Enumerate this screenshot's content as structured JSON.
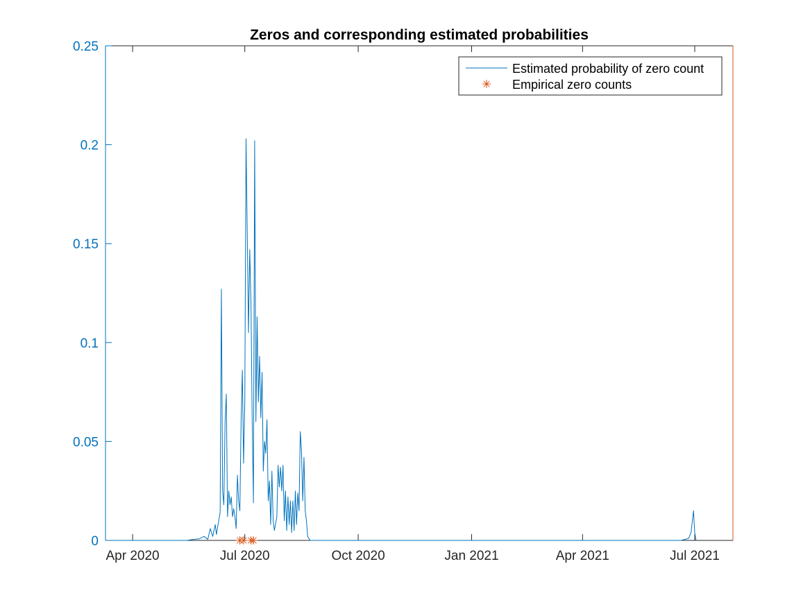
{
  "chart_data": {
    "type": "line",
    "title": "Zeros and corresponding estimated probabilities",
    "xlabel": "",
    "ylabel": "",
    "x_axis": {
      "type": "date",
      "range": [
        "2020-03-10",
        "2021-08-01"
      ],
      "ticks": [
        {
          "date": "2020-04-01",
          "label": "Apr 2020"
        },
        {
          "date": "2020-07-01",
          "label": "Jul 2020"
        },
        {
          "date": "2020-10-01",
          "label": "Oct 2020"
        },
        {
          "date": "2021-01-01",
          "label": "Jan 2021"
        },
        {
          "date": "2021-04-01",
          "label": "Apr 2021"
        },
        {
          "date": "2021-07-01",
          "label": "Jul 2021"
        }
      ]
    },
    "y_axis": {
      "ylim": [
        0,
        0.25
      ],
      "ticks": [
        {
          "value": 0,
          "label": "0"
        },
        {
          "value": 0.05,
          "label": "0.05"
        },
        {
          "value": 0.1,
          "label": "0.1"
        },
        {
          "value": 0.15,
          "label": "0.15"
        },
        {
          "value": 0.2,
          "label": "0.2"
        },
        {
          "value": 0.25,
          "label": "0.25"
        }
      ]
    },
    "grid": false,
    "legend_position": "top-right",
    "colors": {
      "probability": "#0072BD",
      "zeros": "#D95319",
      "right_axis": "#D95319",
      "axis": "#262626"
    },
    "series": [
      {
        "name": "Estimated probability of zero count",
        "style": "line",
        "points": [
          [
            "2020-03-10",
            0
          ],
          [
            "2020-05-15",
            0
          ],
          [
            "2020-05-20",
            0.0005
          ],
          [
            "2020-05-25",
            0.0008
          ],
          [
            "2020-05-29",
            0.002
          ],
          [
            "2020-06-01",
            0.0005
          ],
          [
            "2020-06-03",
            0.006
          ],
          [
            "2020-06-05",
            0.002
          ],
          [
            "2020-06-07",
            0.008
          ],
          [
            "2020-06-08",
            0.003
          ],
          [
            "2020-06-09",
            0.007
          ],
          [
            "2020-06-11",
            0.014
          ],
          [
            "2020-06-12",
            0.127
          ],
          [
            "2020-06-13",
            0.025
          ],
          [
            "2020-06-14",
            0.018
          ],
          [
            "2020-06-15",
            0.06
          ],
          [
            "2020-06-16",
            0.074
          ],
          [
            "2020-06-17",
            0.012
          ],
          [
            "2020-06-18",
            0.025
          ],
          [
            "2020-06-19",
            0.018
          ],
          [
            "2020-06-20",
            0.022
          ],
          [
            "2020-06-21",
            0.012
          ],
          [
            "2020-06-22",
            0.016
          ],
          [
            "2020-06-23",
            0.012
          ],
          [
            "2020-06-24",
            0.006
          ],
          [
            "2020-06-25",
            0.033
          ],
          [
            "2020-06-26",
            0.02
          ],
          [
            "2020-06-27",
            0.015
          ],
          [
            "2020-06-28",
            0.06
          ],
          [
            "2020-06-29",
            0.086
          ],
          [
            "2020-06-30",
            0.039
          ],
          [
            "2020-07-01",
            0.07
          ],
          [
            "2020-07-02",
            0.203
          ],
          [
            "2020-07-03",
            0.155
          ],
          [
            "2020-07-04",
            0.105
          ],
          [
            "2020-07-05",
            0.147
          ],
          [
            "2020-07-06",
            0.12
          ],
          [
            "2020-07-07",
            0.06
          ],
          [
            "2020-07-08",
            0.019
          ],
          [
            "2020-07-09",
            0.202
          ],
          [
            "2020-07-10",
            0.06
          ],
          [
            "2020-07-11",
            0.113
          ],
          [
            "2020-07-12",
            0.07
          ],
          [
            "2020-07-13",
            0.093
          ],
          [
            "2020-07-14",
            0.062
          ],
          [
            "2020-07-15",
            0.085
          ],
          [
            "2020-07-16",
            0.035
          ],
          [
            "2020-07-17",
            0.05
          ],
          [
            "2020-07-18",
            0.044
          ],
          [
            "2020-07-19",
            0.061
          ],
          [
            "2020-07-20",
            0.02
          ],
          [
            "2020-07-21",
            0.03
          ],
          [
            "2020-07-22",
            0.008
          ],
          [
            "2020-07-23",
            0.035
          ],
          [
            "2020-07-24",
            0.01
          ],
          [
            "2020-07-25",
            0.005
          ],
          [
            "2020-07-27",
            0.012
          ],
          [
            "2020-07-28",
            0.038
          ],
          [
            "2020-07-29",
            0.027
          ],
          [
            "2020-07-30",
            0.037
          ],
          [
            "2020-07-31",
            0.025
          ],
          [
            "2020-08-01",
            0.038
          ],
          [
            "2020-08-02",
            0.01
          ],
          [
            "2020-08-03",
            0.025
          ],
          [
            "2020-08-04",
            0.005
          ],
          [
            "2020-08-05",
            0.022
          ],
          [
            "2020-08-06",
            0.008
          ],
          [
            "2020-08-07",
            0.02
          ],
          [
            "2020-08-08",
            0.004
          ],
          [
            "2020-08-09",
            0.02
          ],
          [
            "2020-08-10",
            0.005
          ],
          [
            "2020-08-11",
            0.025
          ],
          [
            "2020-08-12",
            0.008
          ],
          [
            "2020-08-13",
            0.024
          ],
          [
            "2020-08-14",
            0.015
          ],
          [
            "2020-08-15",
            0.055
          ],
          [
            "2020-08-16",
            0.045
          ],
          [
            "2020-08-17",
            0.02
          ],
          [
            "2020-08-18",
            0.042
          ],
          [
            "2020-08-19",
            0.015
          ],
          [
            "2020-08-20",
            0.01
          ],
          [
            "2020-08-21",
            0.002
          ],
          [
            "2020-08-23",
            0
          ],
          [
            "2021-06-20",
            0
          ],
          [
            "2021-06-26",
            0.001
          ],
          [
            "2021-06-28",
            0.004
          ],
          [
            "2021-06-30",
            0.015
          ],
          [
            "2021-07-01",
            0.004
          ],
          [
            "2021-07-02",
            0
          ]
        ]
      },
      {
        "name": "Empirical zero counts",
        "style": "marker",
        "points": [
          [
            "2020-06-27",
            0
          ],
          [
            "2020-06-30",
            0
          ],
          [
            "2020-07-06",
            0
          ],
          [
            "2020-07-08",
            0
          ]
        ]
      }
    ]
  }
}
